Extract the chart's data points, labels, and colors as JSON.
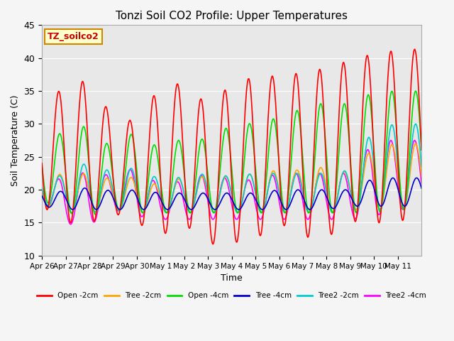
{
  "title": "Tonzi Soil CO2 Profile: Upper Temperatures",
  "xlabel": "Time",
  "ylabel": "Soil Temperature (C)",
  "ylim": [
    10,
    45
  ],
  "background_color": "#f5f5f5",
  "plot_bg_color": "#e8e8e8",
  "series": {
    "Open -2cm": {
      "color": "#ff0000",
      "lw": 1.2
    },
    "Tree -2cm": {
      "color": "#ffa500",
      "lw": 1.2
    },
    "Open -4cm": {
      "color": "#00dd00",
      "lw": 1.2
    },
    "Tree -4cm": {
      "color": "#0000cc",
      "lw": 1.2
    },
    "Tree2 -2cm": {
      "color": "#00cccc",
      "lw": 1.2
    },
    "Tree2 -4cm": {
      "color": "#ff00ff",
      "lw": 1.2
    }
  },
  "xtick_labels": [
    "Apr 26",
    "Apr 27",
    "Apr 28",
    "Apr 29",
    "Apr 30",
    "May 1",
    "May 2",
    "May 3",
    "May 4",
    "May 5",
    "May 6",
    "May 7",
    "May 8",
    "May 9",
    "May 10",
    "May 11"
  ],
  "ytick_positions": [
    10,
    15,
    20,
    25,
    30,
    35,
    40,
    45
  ],
  "ytick_labels": [
    "10",
    "15",
    "20",
    "25",
    "30",
    "35",
    "40",
    "45"
  ],
  "annotation_text": "TZ_soilco2",
  "annotation_color": "#cc0000",
  "annotation_bg": "#ffffcc",
  "annotation_border": "#cc8800",
  "n_days": 15.5,
  "n_pts": 744,
  "open2_peaks": [
    35.1,
    34.9,
    37.1,
    30.7,
    30.5,
    35.8,
    36.2,
    32.8,
    36.1,
    37.2,
    37.3,
    37.8,
    38.5,
    39.7,
    40.7,
    41.2,
    41.4
  ],
  "open2_troughs": [
    17.5,
    15.0,
    14.9,
    16.5,
    15.0,
    13.0,
    14.8,
    11.7,
    11.9,
    12.5,
    15.0,
    12.8,
    12.7,
    15.2,
    15.0,
    14.9,
    17.0
  ],
  "open4_peaks": [
    28.9,
    28.4,
    30.0,
    26.0,
    29.2,
    26.0,
    28.0,
    27.6,
    29.9,
    30.1,
    31.0,
    32.4,
    33.3,
    33.0,
    34.9,
    35.0
  ],
  "open4_troughs": [
    18.5,
    16.5,
    16.0,
    17.0,
    16.5,
    16.5,
    16.5,
    16.5,
    16.5,
    16.5,
    16.5,
    16.5,
    16.5,
    16.5,
    16.5,
    17.0
  ],
  "tree2_peaks": [
    22.5,
    22.3,
    22.5,
    21.5,
    22.0,
    20.5,
    22.0,
    22.0,
    22.0,
    22.5,
    23.0,
    23.0,
    23.5,
    22.5,
    26.5,
    27.0
  ],
  "tree2_troughs": [
    17.5,
    16.5,
    16.5,
    17.0,
    16.5,
    16.5,
    16.5,
    16.5,
    16.5,
    16.5,
    16.5,
    16.5,
    16.5,
    17.0,
    17.0,
    17.0
  ],
  "tree4_peaks": [
    20.0,
    19.7,
    20.4,
    19.8,
    20.0,
    19.5,
    19.5,
    19.5,
    19.5,
    19.5,
    20.0,
    20.0,
    20.0,
    20.0,
    21.8,
    21.8
  ],
  "tree4_troughs": [
    17.5,
    17.0,
    17.0,
    17.0,
    17.0,
    17.0,
    17.0,
    17.0,
    17.0,
    17.0,
    17.0,
    17.0,
    17.0,
    17.5,
    17.5,
    17.5
  ],
  "tree2_2_peaks": [
    22.5,
    22.0,
    24.5,
    22.5,
    23.5,
    21.5,
    22.0,
    22.5,
    22.0,
    22.5,
    22.5,
    22.5,
    22.5,
    23.0,
    29.5,
    30.0
  ],
  "tree2_2_troughs": [
    18.0,
    16.5,
    16.5,
    17.0,
    16.5,
    16.5,
    16.5,
    16.5,
    16.5,
    16.5,
    16.5,
    16.5,
    16.5,
    16.5,
    17.0,
    17.0
  ],
  "tree2_4_peaks": [
    22.0,
    21.5,
    23.0,
    22.0,
    23.5,
    20.5,
    21.5,
    22.5,
    21.5,
    21.5,
    22.5,
    22.5,
    22.5,
    22.5,
    27.5,
    27.5
  ],
  "tree2_4_troughs": [
    18.5,
    14.8,
    14.6,
    17.0,
    16.0,
    15.5,
    15.5,
    15.5,
    15.5,
    15.5,
    15.5,
    15.5,
    15.5,
    15.5,
    16.0,
    17.0
  ]
}
